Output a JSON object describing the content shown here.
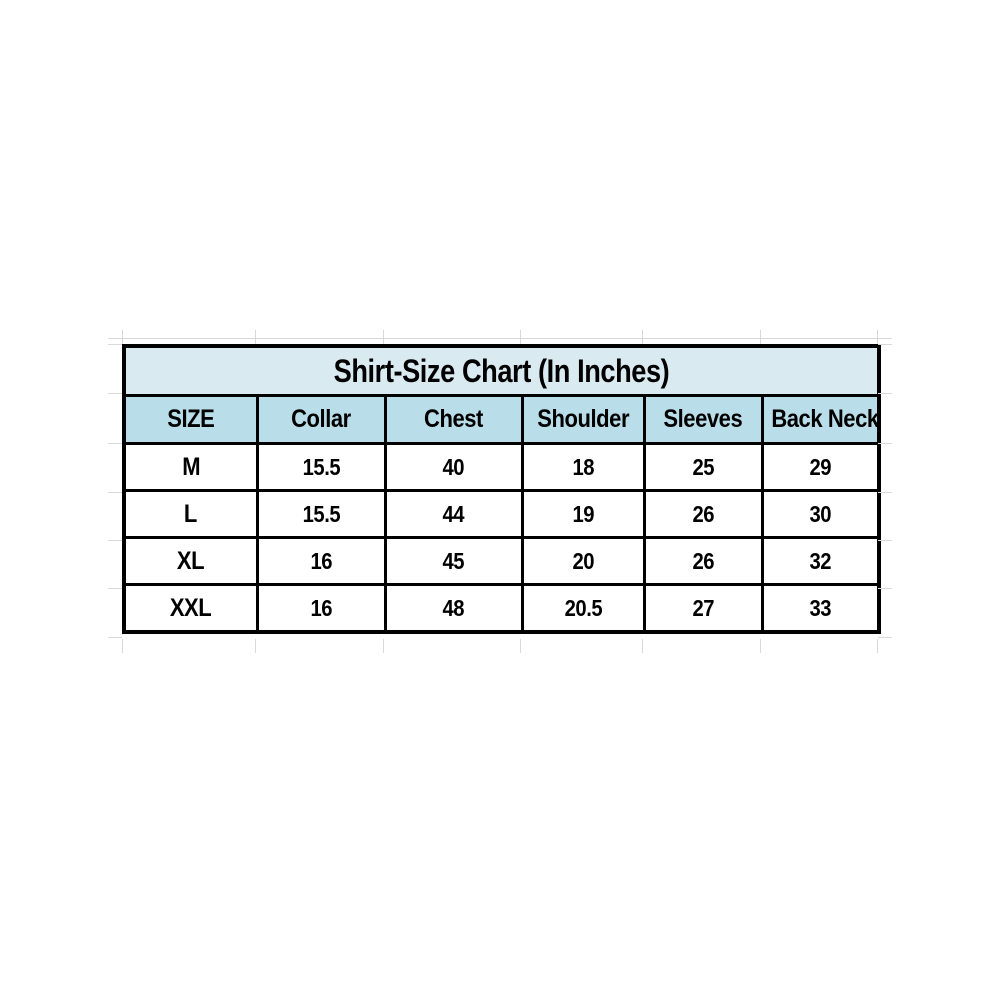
{
  "chart_data": {
    "type": "table",
    "title": "Shirt-Size Chart (In Inches)",
    "units": "Inches",
    "columns": [
      "SIZE",
      "Collar",
      "Chest",
      "Shoulder",
      "Sleeves",
      "Back Neck"
    ],
    "rows": [
      [
        "M",
        "15.5",
        "40",
        "18",
        "25",
        "29"
      ],
      [
        "L",
        "15.5",
        "44",
        "19",
        "26",
        "30"
      ],
      [
        "XL",
        "16",
        "45",
        "20",
        "26",
        "32"
      ],
      [
        "XXL",
        "16",
        "48",
        "20.5",
        "27",
        "33"
      ]
    ],
    "colors": {
      "title_bg": "#daeaf1",
      "header_bg": "#b9dde9",
      "border": "#000000",
      "text": "#000000",
      "gridline": "#d9d9d9",
      "page_bg": "#ffffff"
    },
    "layout_hints": {
      "legend": "none",
      "grid": "faint spreadsheet gridline stubs outside table border"
    }
  }
}
